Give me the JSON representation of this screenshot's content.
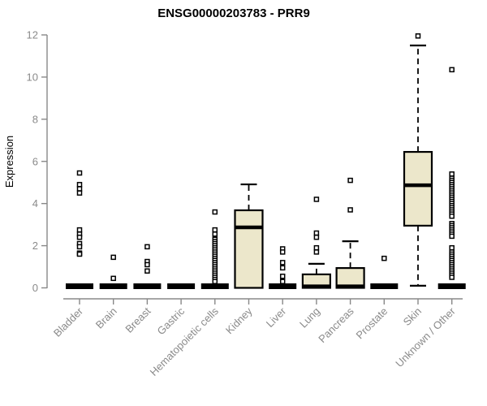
{
  "chart_data": {
    "type": "boxplot",
    "title": "ENSG00000203783 - PRR9",
    "ylabel": "Expression",
    "xlabel": "",
    "ylim": [
      0,
      12
    ],
    "yticks": [
      0,
      2,
      4,
      6,
      8,
      10,
      12
    ],
    "grid": false,
    "legend": "none",
    "categories": [
      "Bladder",
      "Brain",
      "Breast",
      "Gastric",
      "Hematopoietic cells",
      "Kidney",
      "Liver",
      "Lung",
      "Pancreas",
      "Prostate",
      "Skin",
      "Unknown / Other"
    ],
    "boxes": [
      {
        "category": "Bladder",
        "flat": true,
        "q1": 0,
        "median": 0,
        "q3": 0.1,
        "whisker_low": 0,
        "whisker_high": 0.1,
        "outliers": [
          5.45,
          4.9,
          4.7,
          4.5,
          2.75,
          2.55,
          2.4,
          2.1,
          1.95,
          1.65,
          1.6
        ]
      },
      {
        "category": "Brain",
        "flat": true,
        "q1": 0,
        "median": 0,
        "q3": 0.1,
        "whisker_low": 0,
        "whisker_high": 0.1,
        "outliers": [
          1.45,
          0.45
        ]
      },
      {
        "category": "Breast",
        "flat": true,
        "q1": 0,
        "median": 0,
        "q3": 0.1,
        "whisker_low": 0,
        "whisker_high": 0.1,
        "outliers": [
          1.95,
          1.25,
          1.1,
          0.8
        ]
      },
      {
        "category": "Gastric",
        "flat": true,
        "q1": 0,
        "median": 0,
        "q3": 0.1,
        "whisker_low": 0,
        "whisker_high": 0.1,
        "outliers": []
      },
      {
        "category": "Hematopoietic cells",
        "flat": true,
        "q1": 0,
        "median": 0,
        "q3": 0.1,
        "whisker_low": 0,
        "whisker_high": 0.1,
        "outliers": [
          3.6,
          2.75,
          2.55,
          2.3,
          2.2,
          2.1,
          2.0,
          1.9,
          1.8,
          1.7,
          1.6,
          1.5,
          1.4,
          1.3,
          1.2,
          1.1,
          1.0,
          0.9,
          0.8,
          0.7,
          0.6,
          0.5,
          0.4,
          0.3
        ]
      },
      {
        "category": "Kidney",
        "flat": false,
        "q1": 0,
        "median": 2.87,
        "q3": 3.68,
        "whisker_low": 0,
        "whisker_high": 4.91,
        "outliers": []
      },
      {
        "category": "Liver",
        "flat": true,
        "q1": 0,
        "median": 0,
        "q3": 0.1,
        "whisker_low": 0,
        "whisker_high": 0.1,
        "outliers": [
          1.85,
          1.7,
          1.2,
          0.95,
          0.55,
          0.3
        ]
      },
      {
        "category": "Lung",
        "flat": false,
        "q1": 0,
        "median": 0.07,
        "q3": 0.64,
        "whisker_low": 0,
        "whisker_high": 1.14,
        "outliers": [
          4.2,
          2.6,
          2.4,
          1.9,
          1.7
        ]
      },
      {
        "category": "Pancreas",
        "flat": false,
        "q1": 0,
        "median": 0.07,
        "q3": 0.94,
        "whisker_low": 0,
        "whisker_high": 2.21,
        "outliers": [
          5.1,
          3.7
        ]
      },
      {
        "category": "Prostate",
        "flat": true,
        "q1": 0,
        "median": 0,
        "q3": 0.1,
        "whisker_low": 0,
        "whisker_high": 0.1,
        "outliers": [
          1.4
        ]
      },
      {
        "category": "Skin",
        "flat": false,
        "q1": 2.95,
        "median": 4.87,
        "q3": 6.45,
        "whisker_low": 0.1,
        "whisker_high": 11.5,
        "outliers": [
          11.95
        ]
      },
      {
        "category": "Unknown / Other",
        "flat": true,
        "q1": 0,
        "median": 0,
        "q3": 0.1,
        "whisker_low": 0,
        "whisker_high": 0.1,
        "outliers": [
          10.35,
          5.4,
          5.2,
          5.1,
          5.0,
          4.9,
          4.8,
          4.7,
          4.6,
          4.5,
          4.4,
          4.3,
          4.2,
          4.1,
          4.0,
          3.9,
          3.8,
          3.7,
          3.6,
          3.5,
          3.4,
          3.05,
          2.95,
          2.85,
          2.75,
          2.65,
          2.55,
          2.45,
          1.9,
          1.7,
          1.6,
          1.5,
          1.4,
          1.3,
          1.2,
          1.1,
          1.0,
          0.9,
          0.8,
          0.7,
          0.6,
          0.5
        ]
      }
    ],
    "colors": {
      "box_fill": "#ece7cb",
      "box_stroke": "#000000",
      "median": "#000000",
      "whisker": "#000000",
      "outlier_stroke": "#000000",
      "outlier_fill": "#ffffff",
      "axis": "#888888",
      "tick_label": "#8a8a8a",
      "title": "#000000",
      "background": "#ffffff"
    }
  }
}
